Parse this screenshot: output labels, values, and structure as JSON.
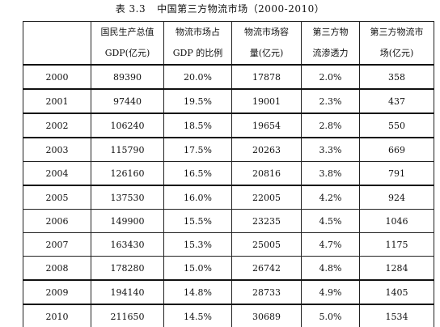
{
  "caption": {
    "number": "表 3.3",
    "title": "中国第三方物流市场（2000-2010）"
  },
  "headers": [
    {
      "line1": "",
      "line2": ""
    },
    {
      "line1": "国民生产总值",
      "line2": "GDP(亿元)"
    },
    {
      "line1": "物流市场占",
      "line2": "GDP 的比例"
    },
    {
      "line1": "物流市场容",
      "line2": "量(亿元)"
    },
    {
      "line1": "第三方物",
      "line2": "流渗透力"
    },
    {
      "line1": "第三方物流市",
      "line2": "场(亿元)"
    }
  ],
  "rows": [
    {
      "year": "2000",
      "gdp": "89390",
      "logistics_share": "20.0%",
      "logistics_market": "17878",
      "penetration": "2.0%",
      "tpl_market": "358"
    },
    {
      "year": "2001",
      "gdp": "97440",
      "logistics_share": "19.5%",
      "logistics_market": "19001",
      "penetration": "2.3%",
      "tpl_market": "437"
    },
    {
      "year": "2002",
      "gdp": "106240",
      "logistics_share": "18.5%",
      "logistics_market": "19654",
      "penetration": "2.8%",
      "tpl_market": "550"
    },
    {
      "year": "2003",
      "gdp": "115790",
      "logistics_share": "17.5%",
      "logistics_market": "20263",
      "penetration": "3.3%",
      "tpl_market": "669"
    },
    {
      "year": "2004",
      "gdp": "126160",
      "logistics_share": "16.5%",
      "logistics_market": "20816",
      "penetration": "3.8%",
      "tpl_market": "791"
    },
    {
      "year": "2005",
      "gdp": "137530",
      "logistics_share": "16.0%",
      "logistics_market": "22005",
      "penetration": "4.2%",
      "tpl_market": "924"
    },
    {
      "year": "2006",
      "gdp": "149900",
      "logistics_share": "15.5%",
      "logistics_market": "23235",
      "penetration": "4.5%",
      "tpl_market": "1046"
    },
    {
      "year": "2007",
      "gdp": "163430",
      "logistics_share": "15.3%",
      "logistics_market": "25005",
      "penetration": "4.7%",
      "tpl_market": "1175"
    },
    {
      "year": "2008",
      "gdp": "178280",
      "logistics_share": "15.0%",
      "logistics_market": "26742",
      "penetration": "4.8%",
      "tpl_market": "1284"
    },
    {
      "year": "2009",
      "gdp": "194140",
      "logistics_share": "14.8%",
      "logistics_market": "28733",
      "penetration": "4.9%",
      "tpl_market": "1405"
    },
    {
      "year": "2010",
      "gdp": "211650",
      "logistics_share": "14.5%",
      "logistics_market": "30689",
      "penetration": "5.0%",
      "tpl_market": "1534"
    }
  ]
}
